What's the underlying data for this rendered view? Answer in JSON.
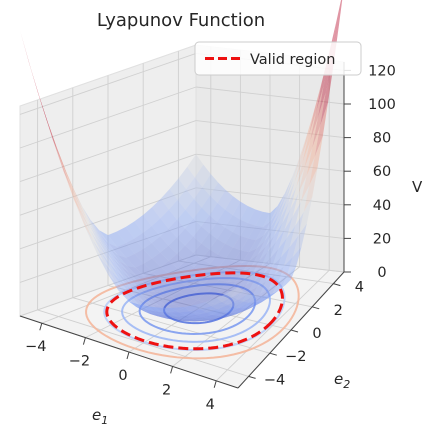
{
  "chart_data": {
    "type": "surface3d",
    "title": "Lyapunov Function",
    "xlabel": "e1",
    "ylabel": "e2",
    "zlabel": "V",
    "xlim": [
      -5,
      5
    ],
    "ylim": [
      -5,
      5
    ],
    "zlim": [
      0,
      125
    ],
    "x_ticks": [
      "−4",
      "−2",
      "0",
      "2",
      "4"
    ],
    "y_ticks": [
      "−4",
      "−2",
      "0",
      "2",
      "4"
    ],
    "z_ticks": [
      "0",
      "20",
      "40",
      "60",
      "80",
      "100",
      "120"
    ],
    "grid": true,
    "colormap": "coolwarm",
    "surface_peak_points": [
      {
        "x": -5,
        "y": -5,
        "z": 125
      },
      {
        "x": 5,
        "y": 5,
        "z": 125
      },
      {
        "x": 5,
        "y": -5,
        "z": 30
      },
      {
        "x": -5,
        "y": 5,
        "z": 20
      }
    ],
    "contour_rings_on_floor": [
      1.5,
      2.5,
      3.2,
      3.9,
      4.6
    ],
    "legend": {
      "placement": "upper-right",
      "entries": [
        {
          "label": "Valid region",
          "color": "#ee1111",
          "style": "dashed"
        }
      ]
    },
    "valid_region": {
      "shape": "circle",
      "radius": 3.8
    }
  }
}
